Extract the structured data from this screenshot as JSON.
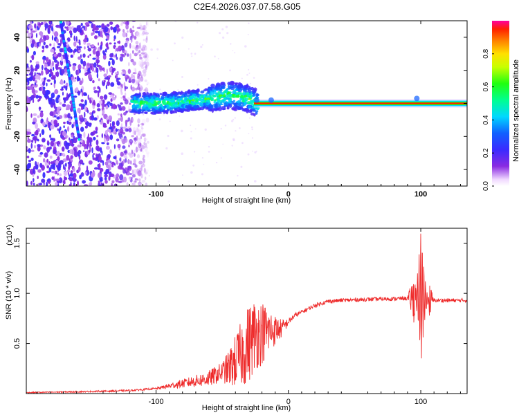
{
  "title": "C2E4.2026.037.07.58.G05",
  "colors": {
    "snr_line": "#ee2b2b",
    "axis": "#000000",
    "background": "#ffffff"
  },
  "chart_data": [
    {
      "type": "heatmap",
      "name": "spectrogram",
      "xlabel": "Height of straight line (km)",
      "ylabel": "Frequency (Hz)",
      "xlim": [
        -198,
        135
      ],
      "ylim": [
        -50,
        50
      ],
      "x_ticks": [
        -100,
        0,
        100
      ],
      "x_tick_labels": [
        "-100",
        "0",
        "100"
      ],
      "y_ticks": [
        -40,
        -20,
        0,
        20,
        40
      ],
      "y_tick_labels": [
        "-40",
        "-20",
        "0",
        "20",
        "40"
      ],
      "ridge": {
        "description": "dominant frequency track",
        "segments": [
          {
            "x": [
              -198,
              -120,
              -100,
              -80,
              -60,
              -45,
              -30,
              -24,
              -12,
              0,
              50,
              95,
              100,
              135
            ],
            "y": [
              0,
              0,
              0,
              1,
              3,
              5,
              3,
              0,
              0,
              0,
              0,
              0,
              0,
              0
            ]
          }
        ],
        "diagonal_streak": {
          "x": [
            -172,
            -158
          ],
          "y": [
            50,
            -22
          ]
        }
      },
      "noise_region_x": [
        -198,
        -112
      ],
      "colorbar": {
        "label": "Normalized spectral amplitude",
        "range": [
          0.0,
          1.0
        ],
        "ticks": [
          0.0,
          0.2,
          0.4,
          0.6,
          0.8
        ],
        "tick_labels": [
          "0.0",
          "0.2",
          "0.4",
          "0.6",
          "0.8"
        ]
      }
    },
    {
      "type": "line",
      "name": "snr",
      "xlabel": "Height of straight line (km)",
      "ylabel": "SNR (10 * v/v)",
      "y_scale_label": "(x10⁴)",
      "xlim": [
        -198,
        135
      ],
      "ylim": [
        0,
        1.65
      ],
      "x_ticks": [
        -100,
        0,
        100
      ],
      "x_tick_labels": [
        "-100",
        "0",
        "100"
      ],
      "y_ticks": [
        0.5,
        1.0,
        1.5
      ],
      "y_tick_labels": [
        "0.5",
        "1.0",
        "1.5"
      ],
      "envelope": {
        "x": [
          -198,
          -150,
          -120,
          -100,
          -80,
          -60,
          -45,
          -35,
          -25,
          -15,
          -5,
          5,
          20,
          30,
          40,
          60,
          90,
          95,
          100,
          105,
          110,
          135
        ],
        "y": [
          0.01,
          0.02,
          0.03,
          0.05,
          0.1,
          0.15,
          0.25,
          0.4,
          0.6,
          0.62,
          0.65,
          0.78,
          0.88,
          0.92,
          0.93,
          0.94,
          0.95,
          0.95,
          1.0,
          0.93,
          0.93,
          0.93
        ]
      },
      "noise_amplitude": {
        "x": [
          -198,
          -100,
          -70,
          -50,
          -38,
          -30,
          -22,
          -15,
          -10,
          0,
          10,
          30,
          90,
          96,
          100,
          104,
          110,
          135
        ],
        "y": [
          0.005,
          0.01,
          0.06,
          0.1,
          0.3,
          0.4,
          0.35,
          0.25,
          0.15,
          0.03,
          0.02,
          0.02,
          0.02,
          0.3,
          0.7,
          0.3,
          0.02,
          0.02
        ]
      }
    }
  ]
}
